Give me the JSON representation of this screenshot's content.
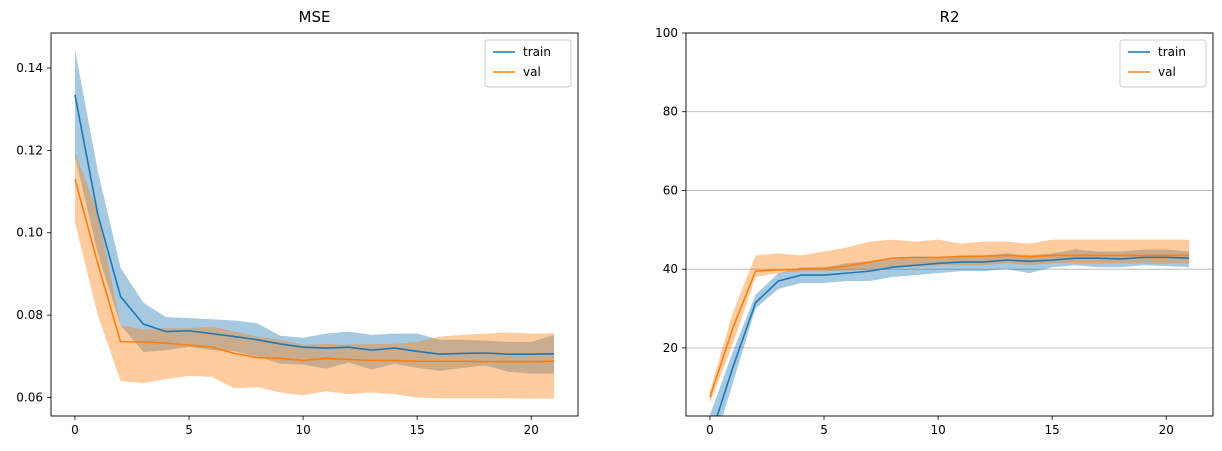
{
  "chart_data": [
    {
      "type": "line",
      "title": "MSE",
      "xlabel": "",
      "ylabel": "",
      "xlim": [
        -1.05,
        22.05
      ],
      "ylim": [
        0.0555,
        0.1485
      ],
      "xticks": [
        0,
        5,
        10,
        15,
        20
      ],
      "yticks": [
        0.06,
        0.08,
        0.1,
        0.12,
        0.14
      ],
      "ytick_labels": [
        "0.06",
        "0.08",
        "0.10",
        "0.12",
        "0.14"
      ],
      "grid": false,
      "legend": "top-right",
      "x": [
        0,
        1,
        2,
        3,
        4,
        5,
        6,
        7,
        8,
        9,
        10,
        11,
        12,
        13,
        14,
        15,
        16,
        17,
        18,
        19,
        20,
        21
      ],
      "series": [
        {
          "name": "train",
          "color": "#1f77b4",
          "band_color": "#1f77b4",
          "values": [
            0.1335,
            0.1045,
            0.0845,
            0.0778,
            0.076,
            0.0762,
            0.0755,
            0.0748,
            0.074,
            0.073,
            0.0722,
            0.072,
            0.0722,
            0.0715,
            0.072,
            0.0712,
            0.0705,
            0.0707,
            0.0708,
            0.0705,
            0.0705,
            0.0706
          ],
          "upper": [
            0.1445,
            0.115,
            0.0915,
            0.083,
            0.0795,
            0.0793,
            0.079,
            0.0787,
            0.078,
            0.075,
            0.0745,
            0.0755,
            0.076,
            0.0752,
            0.0755,
            0.0755,
            0.074,
            0.074,
            0.0738,
            0.0735,
            0.0735,
            0.0752
          ],
          "lower": [
            0.1185,
            0.095,
            0.0775,
            0.071,
            0.0715,
            0.0723,
            0.0715,
            0.0712,
            0.07,
            0.0682,
            0.068,
            0.067,
            0.0685,
            0.0668,
            0.0682,
            0.0672,
            0.0665,
            0.0672,
            0.0678,
            0.0662,
            0.0658,
            0.0658
          ]
        },
        {
          "name": "val",
          "color": "#ff7f0e",
          "band_color": "#ff7f0e",
          "values": [
            0.113,
            0.0925,
            0.0735,
            0.0735,
            0.0732,
            0.0727,
            0.0722,
            0.0707,
            0.0697,
            0.0695,
            0.069,
            0.0695,
            0.0692,
            0.069,
            0.069,
            0.0688,
            0.0688,
            0.0688,
            0.0687,
            0.0687,
            0.0687,
            0.0688
          ],
          "upper": [
            0.1195,
            0.105,
            0.0775,
            0.0765,
            0.0768,
            0.0768,
            0.0772,
            0.076,
            0.0748,
            0.074,
            0.0728,
            0.073,
            0.0728,
            0.073,
            0.073,
            0.0735,
            0.0748,
            0.0752,
            0.0755,
            0.0758,
            0.0755,
            0.0756
          ],
          "lower": [
            0.1025,
            0.08,
            0.064,
            0.0635,
            0.0645,
            0.0652,
            0.065,
            0.0622,
            0.0625,
            0.0612,
            0.0605,
            0.0615,
            0.0608,
            0.0612,
            0.0608,
            0.06,
            0.0598,
            0.0598,
            0.0598,
            0.0598,
            0.0597,
            0.0597
          ]
        }
      ]
    },
    {
      "type": "line",
      "title": "R2",
      "xlabel": "",
      "ylabel": "",
      "xlim": [
        -1.05,
        22.05
      ],
      "ylim": [
        2.7,
        100
      ],
      "xticks": [
        0,
        5,
        10,
        15,
        20
      ],
      "yticks": [
        20,
        40,
        60,
        80,
        100
      ],
      "ytick_labels": [
        "20",
        "40",
        "60",
        "80",
        "100"
      ],
      "grid": "y",
      "legend": "top-right",
      "x": [
        0,
        1,
        2,
        3,
        4,
        5,
        6,
        7,
        8,
        9,
        10,
        11,
        12,
        13,
        14,
        15,
        16,
        17,
        18,
        19,
        20,
        21
      ],
      "series": [
        {
          "name": "train",
          "color": "#1f77b4",
          "band_color": "#1f77b4",
          "values": [
            -3.0,
            15.0,
            31.5,
            37.0,
            38.5,
            38.5,
            39.0,
            39.5,
            40.5,
            41.0,
            41.5,
            41.8,
            41.8,
            42.3,
            42.0,
            42.3,
            42.8,
            42.8,
            42.6,
            43.0,
            43.0,
            42.8
          ],
          "upper": [
            3.0,
            19.0,
            33.5,
            39.0,
            40.5,
            40.5,
            41.5,
            42.0,
            42.5,
            43.0,
            43.0,
            43.5,
            43.5,
            44.0,
            43.5,
            44.0,
            45.0,
            44.5,
            44.5,
            45.0,
            45.0,
            44.5
          ],
          "lower": [
            -8.0,
            11.0,
            30.0,
            35.0,
            36.5,
            36.5,
            37.0,
            37.0,
            38.0,
            38.5,
            39.0,
            39.5,
            39.5,
            40.0,
            39.0,
            40.5,
            41.0,
            40.5,
            40.5,
            41.0,
            40.8,
            40.5
          ]
        },
        {
          "name": "val",
          "color": "#ff7f0e",
          "band_color": "#ff7f0e",
          "values": [
            7.5,
            25.0,
            39.5,
            39.8,
            40.0,
            40.2,
            40.8,
            41.8,
            42.8,
            43.0,
            43.0,
            43.2,
            43.3,
            43.5,
            43.2,
            43.5,
            43.5,
            43.5,
            43.5,
            43.5,
            43.5,
            43.5
          ],
          "upper": [
            9.0,
            29.0,
            43.5,
            44.0,
            43.5,
            44.5,
            45.5,
            47.0,
            47.5,
            47.0,
            47.5,
            46.5,
            47.0,
            47.0,
            46.5,
            47.5,
            47.5,
            47.5,
            47.5,
            47.5,
            47.5,
            47.5
          ],
          "lower": [
            6.0,
            21.0,
            38.0,
            39.0,
            39.5,
            39.5,
            39.5,
            40.0,
            40.5,
            40.5,
            41.0,
            41.0,
            41.0,
            41.5,
            41.0,
            41.5,
            41.5,
            41.5,
            41.5,
            41.5,
            41.5,
            41.5
          ]
        }
      ]
    }
  ]
}
